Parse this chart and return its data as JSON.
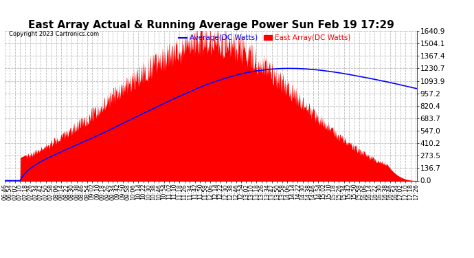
{
  "title": "East Array Actual & Running Average Power Sun Feb 19 17:29",
  "copyright": "Copyright 2023 Cartronics.com",
  "legend_avg": "Average(DC Watts)",
  "legend_east": "East Array(DC Watts)",
  "ymin": 0.0,
  "ymax": 1640.9,
  "yticks": [
    0.0,
    136.7,
    273.5,
    410.2,
    547.0,
    683.7,
    820.4,
    957.2,
    1093.9,
    1230.7,
    1367.4,
    1504.1,
    1640.9
  ],
  "bg_color": "#ffffff",
  "grid_color": "#bbbbbb",
  "fill_color": "#ff0000",
  "avg_color": "#0000ff",
  "east_color": "#ff0000",
  "title_fontsize": 11,
  "xlabel_fontsize": 6,
  "ylabel_fontsize": 7.5,
  "legend_fontsize": 7.5,
  "copyright_fontsize": 6
}
